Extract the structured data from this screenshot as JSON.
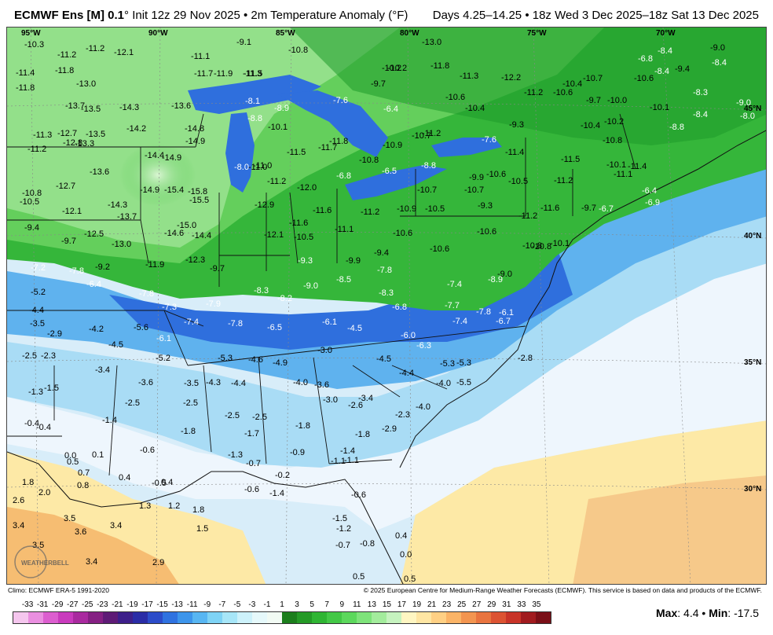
{
  "header": {
    "model": "ECMWF Ens [M] 0.1",
    "degree": "°",
    "init": "Init 12z 29 Nov 2025",
    "bullet": "•",
    "product": "2m Temperature Anomaly (°F)",
    "valid": "Days 4.25–14.25 • 18z Wed 3 Dec 2025–18z Sat 13 Dec 2025"
  },
  "map": {
    "longitude_labels": [
      "95°W",
      "90°W",
      "85°W",
      "80°W",
      "75°W",
      "70°W"
    ],
    "latitude_labels": [
      "45°N",
      "40°N",
      "35°N",
      "30°N"
    ],
    "logo_text": "WEATHERBELL",
    "values": [
      {
        "v": "-10.3",
        "c": "g"
      },
      {
        "v": "-11.2",
        "c": "g"
      },
      {
        "v": "-11.2",
        "c": "g"
      },
      {
        "v": "-12.1",
        "c": "g"
      },
      {
        "v": "-11.4",
        "c": "g"
      },
      {
        "v": "-11.8",
        "c": "g"
      },
      {
        "v": "-11.8",
        "c": "g"
      },
      {
        "v": "-13.0",
        "c": "g"
      },
      {
        "v": "-13.7",
        "c": "g"
      },
      {
        "v": "-13.5",
        "c": "g"
      },
      {
        "v": "-14.3",
        "c": "g"
      },
      {
        "v": "-13.6",
        "c": "g"
      },
      {
        "v": "-14.2",
        "c": "g"
      },
      {
        "v": "-14.8",
        "c": "g"
      },
      {
        "v": "-14.9",
        "c": "g"
      },
      {
        "v": "-11.3",
        "c": "g"
      },
      {
        "v": "-12.7",
        "c": "g"
      },
      {
        "v": "-13.5",
        "c": "g"
      },
      {
        "v": "-12.8",
        "c": "g"
      },
      {
        "v": "-13.3",
        "c": "g"
      },
      {
        "v": "-11.2",
        "c": "g"
      },
      {
        "v": "-14.4",
        "c": "g"
      },
      {
        "v": "-14.9",
        "c": "g"
      },
      {
        "v": "-13.6",
        "c": "g"
      },
      {
        "v": "-12.7",
        "c": "g"
      },
      {
        "v": "-14.9",
        "c": "g"
      },
      {
        "v": "-15.4",
        "c": "g"
      },
      {
        "v": "-15.8",
        "c": "g"
      },
      {
        "v": "-15.5",
        "c": "g"
      },
      {
        "v": "-10.8",
        "c": "g"
      },
      {
        "v": "-10.5",
        "c": "g"
      },
      {
        "v": "-14.3",
        "c": "g"
      },
      {
        "v": "-12.1",
        "c": "g"
      },
      {
        "v": "-13.7",
        "c": "g"
      },
      {
        "v": "-15.0",
        "c": "g"
      },
      {
        "v": "-9.4",
        "c": "g"
      },
      {
        "v": "-12.5",
        "c": "g"
      },
      {
        "v": "-14.6",
        "c": "g"
      },
      {
        "v": "-14.4",
        "c": "g"
      },
      {
        "v": "-9.7",
        "c": "g"
      },
      {
        "v": "-13.0",
        "c": "g"
      },
      {
        "v": "-11.9",
        "c": "g"
      },
      {
        "v": "-12.3",
        "c": "g"
      },
      {
        "v": "-9.1",
        "c": "g"
      },
      {
        "v": "-10.8",
        "c": "g"
      },
      {
        "v": "-11.1",
        "c": "g"
      },
      {
        "v": "-11.7",
        "c": "g"
      },
      {
        "v": "-11.9",
        "c": "g"
      },
      {
        "v": "-11.5",
        "c": "g"
      },
      {
        "v": "-11.3",
        "c": "g"
      },
      {
        "v": "-8.1",
        "c": "w"
      },
      {
        "v": "-8.9",
        "c": "w"
      },
      {
        "v": "-8.8",
        "c": "w"
      },
      {
        "v": "-10.1",
        "c": "g"
      },
      {
        "v": "-11.0",
        "c": "g"
      },
      {
        "v": "-7.6",
        "c": "w"
      },
      {
        "v": "-10.2",
        "c": "g"
      },
      {
        "v": "-9.7",
        "c": "g"
      },
      {
        "v": "-6.4",
        "c": "w"
      },
      {
        "v": "-13.0",
        "c": "g"
      },
      {
        "v": "-11.8",
        "c": "g"
      },
      {
        "v": "-11.3",
        "c": "g"
      },
      {
        "v": "-12.2",
        "c": "g"
      },
      {
        "v": "-10.2",
        "c": "g"
      },
      {
        "v": "-10.6",
        "c": "g"
      },
      {
        "v": "-10.4",
        "c": "g"
      },
      {
        "v": "-11.2",
        "c": "g"
      },
      {
        "v": "-10.6",
        "c": "g"
      },
      {
        "v": "-10.4",
        "c": "g"
      },
      {
        "v": "-10.7",
        "c": "g"
      },
      {
        "v": "-9.7",
        "c": "g"
      },
      {
        "v": "-10.0",
        "c": "g"
      },
      {
        "v": "-10.6",
        "c": "g"
      },
      {
        "v": "-8.4",
        "c": "w"
      },
      {
        "v": "-6.8",
        "c": "w"
      },
      {
        "v": "-8.4",
        "c": "w"
      },
      {
        "v": "-9.0",
        "c": "g"
      },
      {
        "v": "-8.4",
        "c": "w"
      },
      {
        "v": "-9.4",
        "c": "g"
      },
      {
        "v": "-8.3",
        "c": "w"
      },
      {
        "v": "-10.1",
        "c": "g"
      },
      {
        "v": "-9.0",
        "c": "w"
      },
      {
        "v": "-8.0",
        "c": "w"
      },
      {
        "v": "-8.4",
        "c": "w"
      },
      {
        "v": "-8.8",
        "c": "w"
      },
      {
        "v": "-11.5",
        "c": "g"
      },
      {
        "v": "-11.7",
        "c": "g"
      },
      {
        "v": "-11.8",
        "c": "g"
      },
      {
        "v": "-10.8",
        "c": "g"
      },
      {
        "v": "-10.9",
        "c": "g"
      },
      {
        "v": "-10.7",
        "c": "g"
      },
      {
        "v": "-11.2",
        "c": "g"
      },
      {
        "v": "-9.3",
        "c": "g"
      },
      {
        "v": "-7.6",
        "c": "w"
      },
      {
        "v": "-8.0",
        "c": "w"
      },
      {
        "v": "-11.0",
        "c": "g"
      },
      {
        "v": "-11.2",
        "c": "g"
      },
      {
        "v": "-10.7",
        "c": "g"
      },
      {
        "v": "-6.8",
        "c": "w"
      },
      {
        "v": "-6.5",
        "c": "w"
      },
      {
        "v": "-8.8",
        "c": "w"
      },
      {
        "v": "-9.9",
        "c": "g"
      },
      {
        "v": "-10.6",
        "c": "g"
      },
      {
        "v": "-11.4",
        "c": "g"
      },
      {
        "v": "-10.5",
        "c": "g"
      },
      {
        "v": "-11.5",
        "c": "g"
      },
      {
        "v": "-10.4",
        "c": "g"
      },
      {
        "v": "-10.2",
        "c": "g"
      },
      {
        "v": "-10.8",
        "c": "g"
      },
      {
        "v": "-10.1",
        "c": "g"
      },
      {
        "v": "-11.4",
        "c": "g"
      },
      {
        "v": "-11.2",
        "c": "g"
      },
      {
        "v": "-11.1",
        "c": "g"
      },
      {
        "v": "-6.4",
        "c": "w"
      },
      {
        "v": "-6.9",
        "c": "w"
      },
      {
        "v": "-6.7",
        "c": "w"
      },
      {
        "v": "-9.7",
        "c": "g"
      },
      {
        "v": "-12.0",
        "c": "g"
      },
      {
        "v": "-12.9",
        "c": "g"
      },
      {
        "v": "-11.6",
        "c": "g"
      },
      {
        "v": "-11.6",
        "c": "g"
      },
      {
        "v": "-11.2",
        "c": "g"
      },
      {
        "v": "-10.9",
        "c": "g"
      },
      {
        "v": "-10.5",
        "c": "g"
      },
      {
        "v": "-10.7",
        "c": "g"
      },
      {
        "v": "-9.3",
        "c": "g"
      },
      {
        "v": "-11.2",
        "c": "g"
      },
      {
        "v": "-11.6",
        "c": "g"
      },
      {
        "v": "-11.1",
        "c": "g"
      },
      {
        "v": "-12.1",
        "c": "g"
      },
      {
        "v": "-10.5",
        "c": "g"
      },
      {
        "v": "-10.6",
        "c": "g"
      },
      {
        "v": "-10.6",
        "c": "g"
      },
      {
        "v": "-10.8",
        "c": "g"
      },
      {
        "v": "-10.1",
        "c": "g"
      },
      {
        "v": "-10.6",
        "c": "g"
      },
      {
        "v": "-9.4",
        "c": "g"
      },
      {
        "v": "-9.3",
        "c": "w"
      },
      {
        "v": "-9.9",
        "c": "g"
      },
      {
        "v": "-10.8",
        "c": "g"
      },
      {
        "v": "-9.7",
        "c": "g"
      },
      {
        "v": "-7.2",
        "c": "w"
      },
      {
        "v": "-7.8",
        "c": "w"
      },
      {
        "v": "-9.2",
        "c": "g"
      },
      {
        "v": "-6.4",
        "c": "w"
      },
      {
        "v": "-5.2",
        "c": "g"
      },
      {
        "v": "-7.8",
        "c": "w"
      },
      {
        "v": "-7.9",
        "c": "w"
      },
      {
        "v": "-8.3",
        "c": "w"
      },
      {
        "v": "-8.2",
        "c": "w"
      },
      {
        "v": "-9.0",
        "c": "w"
      },
      {
        "v": "-8.5",
        "c": "w"
      },
      {
        "v": "-7.8",
        "c": "w"
      },
      {
        "v": "-8.3",
        "c": "w"
      },
      {
        "v": "-7.4",
        "c": "w"
      },
      {
        "v": "-8.9",
        "c": "w"
      },
      {
        "v": "-9.0",
        "c": "g"
      },
      {
        "v": "-4.4",
        "c": "g"
      },
      {
        "v": "-7.3",
        "c": "w"
      },
      {
        "v": "-7.4",
        "c": "w"
      },
      {
        "v": "-7.8",
        "c": "w"
      },
      {
        "v": "-6.5",
        "c": "w"
      },
      {
        "v": "-6.1",
        "c": "w"
      },
      {
        "v": "-4.5",
        "c": "w"
      },
      {
        "v": "-6.8",
        "c": "w"
      },
      {
        "v": "-7.7",
        "c": "w"
      },
      {
        "v": "-7.8",
        "c": "w"
      },
      {
        "v": "-6.1",
        "c": "w"
      },
      {
        "v": "-6.7",
        "c": "w"
      },
      {
        "v": "-7.4",
        "c": "w"
      },
      {
        "v": "-3.5",
        "c": "g"
      },
      {
        "v": "-4.2",
        "c": "g"
      },
      {
        "v": "-5.6",
        "c": "g"
      },
      {
        "v": "-2.9",
        "c": "g"
      },
      {
        "v": "-6.1",
        "c": "w"
      },
      {
        "v": "-4.5",
        "c": "g"
      },
      {
        "v": "-6.0",
        "c": "w"
      },
      {
        "v": "-6.3",
        "c": "w"
      },
      {
        "v": "-3.0",
        "c": "g"
      },
      {
        "v": "-2.5",
        "c": "g"
      },
      {
        "v": "-2.3",
        "c": "g"
      },
      {
        "v": "-5.2",
        "c": "g"
      },
      {
        "v": "-5.3",
        "c": "g"
      },
      {
        "v": "-4.6",
        "c": "g"
      },
      {
        "v": "-4.9",
        "c": "g"
      },
      {
        "v": "-4.5",
        "c": "g"
      },
      {
        "v": "-2.8",
        "c": "g"
      },
      {
        "v": "-3.4",
        "c": "g"
      },
      {
        "v": "-5.3",
        "c": "g"
      },
      {
        "v": "-5.3",
        "c": "g"
      },
      {
        "v": "-4.4",
        "c": "g"
      },
      {
        "v": "-3.6",
        "c": "g"
      },
      {
        "v": "-3.5",
        "c": "g"
      },
      {
        "v": "-4.3",
        "c": "g"
      },
      {
        "v": "-4.4",
        "c": "g"
      },
      {
        "v": "-4.0",
        "c": "g"
      },
      {
        "v": "-3.6",
        "c": "g"
      },
      {
        "v": "-4.0",
        "c": "g"
      },
      {
        "v": "-5.5",
        "c": "g"
      },
      {
        "v": "-1.3",
        "c": "g"
      },
      {
        "v": "-1.5",
        "c": "g"
      },
      {
        "v": "-3.0",
        "c": "g"
      },
      {
        "v": "-3.4",
        "c": "g"
      },
      {
        "v": "-2.6",
        "c": "g"
      },
      {
        "v": "-2.5",
        "c": "g"
      },
      {
        "v": "-2.5",
        "c": "g"
      },
      {
        "v": "-2.5",
        "c": "g"
      },
      {
        "v": "-2.5",
        "c": "g"
      },
      {
        "v": "-4.0",
        "c": "g"
      },
      {
        "v": "-2.3",
        "c": "g"
      },
      {
        "v": "-0.4",
        "c": "g"
      },
      {
        "v": "-1.4",
        "c": "g"
      },
      {
        "v": "-0.4",
        "c": "g"
      },
      {
        "v": "-1.8",
        "c": "g"
      },
      {
        "v": "-1.7",
        "c": "g"
      },
      {
        "v": "-1.8",
        "c": "g"
      },
      {
        "v": "-1.8",
        "c": "g"
      },
      {
        "v": "-2.9",
        "c": "g"
      },
      {
        "v": "-0.6",
        "c": "g"
      },
      {
        "v": "-1.3",
        "c": "g"
      },
      {
        "v": "-0.9",
        "c": "g"
      },
      {
        "v": "-1.4",
        "c": "g"
      },
      {
        "v": "0.0",
        "c": "g"
      },
      {
        "v": "0.1",
        "c": "g"
      },
      {
        "v": "0.5",
        "c": "g"
      },
      {
        "v": "-0.7",
        "c": "g"
      },
      {
        "v": "-1.1",
        "c": "g"
      },
      {
        "v": "-1.1",
        "c": "g"
      },
      {
        "v": "0.7",
        "c": "g"
      },
      {
        "v": "0.4",
        "c": "g"
      },
      {
        "v": "-0.5",
        "c": "g"
      },
      {
        "v": "-0.2",
        "c": "g"
      },
      {
        "v": "1.8",
        "c": "g"
      },
      {
        "v": "0.8",
        "c": "g"
      },
      {
        "v": "0.4",
        "c": "g"
      },
      {
        "v": "-0.6",
        "c": "g"
      },
      {
        "v": "-1.4",
        "c": "g"
      },
      {
        "v": "2.0",
        "c": "g"
      },
      {
        "v": "-0.6",
        "c": "g"
      },
      {
        "v": "2.6",
        "c": "g"
      },
      {
        "v": "1.3",
        "c": "g"
      },
      {
        "v": "1.2",
        "c": "g"
      },
      {
        "v": "1.8",
        "c": "g"
      },
      {
        "v": "3.4",
        "c": "g"
      },
      {
        "v": "3.5",
        "c": "g"
      },
      {
        "v": "3.6",
        "c": "g"
      },
      {
        "v": "3.4",
        "c": "g"
      },
      {
        "v": "1.5",
        "c": "g"
      },
      {
        "v": "-1.5",
        "c": "g"
      },
      {
        "v": "-1.2",
        "c": "g"
      },
      {
        "v": "3.5",
        "c": "g"
      },
      {
        "v": "-0.7",
        "c": "g"
      },
      {
        "v": "-0.8",
        "c": "g"
      },
      {
        "v": "0.4",
        "c": "g"
      },
      {
        "v": "3.4",
        "c": "g"
      },
      {
        "v": "2.9",
        "c": "g"
      },
      {
        "v": "0.0",
        "c": "g"
      },
      {
        "v": "0.5",
        "c": "g"
      },
      {
        "v": "0.5",
        "c": "g"
      }
    ]
  },
  "footer": {
    "climo": "Climo: ECMWF ERA-5 1991-2020",
    "copyright": "© 2025 European Centre for Medium-Range Weather Forecasts (ECMWF). This service is based on data and products of the ECMWF."
  },
  "colorbar": {
    "labels": [
      "-33",
      "-31",
      "-29",
      "-27",
      "-25",
      "-23",
      "-21",
      "-19",
      "-17",
      "-15",
      "-13",
      "-11",
      "-9",
      "-7",
      "-5",
      "-3",
      "-1",
      "1",
      "3",
      "5",
      "7",
      "9",
      "11",
      "13",
      "15",
      "17",
      "19",
      "21",
      "23",
      "25",
      "27",
      "29",
      "31",
      "33",
      "35"
    ],
    "colors": [
      "#f5c6ee",
      "#ea8fe0",
      "#dc5ecf",
      "#c93bbd",
      "#a92a9f",
      "#852083",
      "#5e1b76",
      "#3d1f8a",
      "#2a2ca6",
      "#2c4cc9",
      "#2f72e0",
      "#3d95eb",
      "#58b6f2",
      "#7ed3f5",
      "#a7e6f8",
      "#cdf2fb",
      "#e6f9fb",
      "#f2fbf4",
      "#1b7e1c",
      "#249a26",
      "#2fb533",
      "#43c846",
      "#5cd85c",
      "#7ee37a",
      "#a3ec9c",
      "#c6f3bf",
      "#fff6c2",
      "#ffe6a3",
      "#ffd084",
      "#fbb467",
      "#f39550",
      "#e9743f",
      "#dc5332",
      "#c83428",
      "#a11b1f",
      "#7a0f17"
    ],
    "order_note": ""
  },
  "stats": {
    "max_label": "Max",
    "max_value": ": 4.4",
    "sep": "•",
    "min_label": "Min",
    "min_value": ": -17.5"
  }
}
